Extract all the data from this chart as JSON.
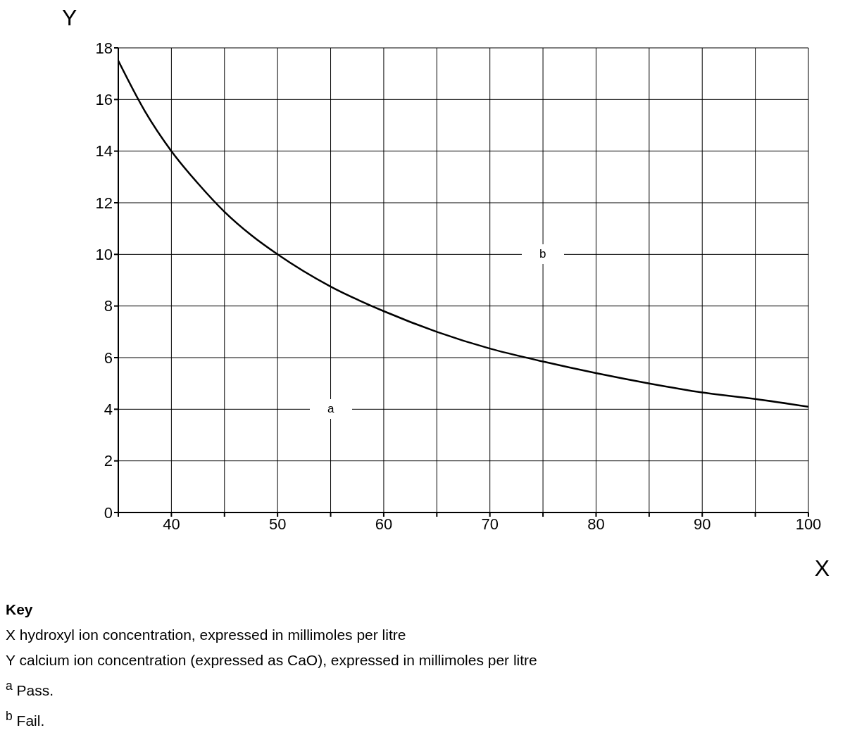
{
  "chart_data": {
    "type": "line",
    "xlabel": "X",
    "ylabel": "Y",
    "x": [
      35,
      37.5,
      40,
      42.5,
      45,
      47.5,
      50,
      55,
      60,
      65,
      70,
      75,
      80,
      85,
      90,
      95,
      100
    ],
    "series": [
      {
        "color": "#000000",
        "values": [
          17.5,
          15.55,
          14,
          12.75,
          11.65,
          10.75,
          10,
          8.75,
          7.8,
          7,
          6.35,
          5.85,
          5.4,
          5,
          4.65,
          4.4,
          4.1
        ]
      }
    ],
    "xlim": [
      35,
      100
    ],
    "xticks": [
      {
        "value": 35,
        "label": null
      },
      40,
      {
        "value": 45,
        "label": null
      },
      50,
      {
        "value": 55,
        "label": null
      },
      60,
      {
        "value": 65,
        "label": null
      },
      70,
      {
        "value": 75,
        "label": null
      },
      80,
      {
        "value": 85,
        "label": null
      },
      90,
      {
        "value": 95,
        "label": null
      },
      100
    ],
    "ylim": [
      0,
      18
    ],
    "yticks": [
      0,
      2,
      4,
      6,
      8,
      10,
      12,
      14,
      16,
      18
    ],
    "grid": true,
    "marker": "none",
    "line_style": "solid",
    "annotations": [
      "a",
      "b",
      "Key",
      "X hydroxyl ion concentration, expressed in millimoles per litre",
      "Y calcium ion concentration (expressed as CaO), expressed in millimoles per litre",
      "$^{a}$ Pass.",
      "$^{b}$ Fail."
    ]
  }
}
